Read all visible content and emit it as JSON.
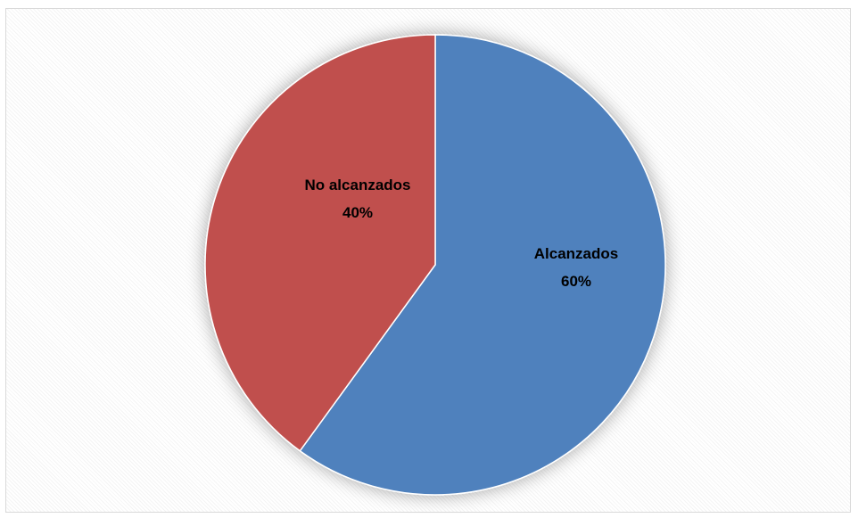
{
  "chart_data": {
    "type": "pie",
    "title": "",
    "categories": [
      "Alcanzados",
      "No alcanzados"
    ],
    "values": [
      60,
      40
    ],
    "data_labels": [
      "60%",
      "40%"
    ],
    "colors": [
      "#4f81bd",
      "#c0504d"
    ],
    "legend": "none"
  }
}
